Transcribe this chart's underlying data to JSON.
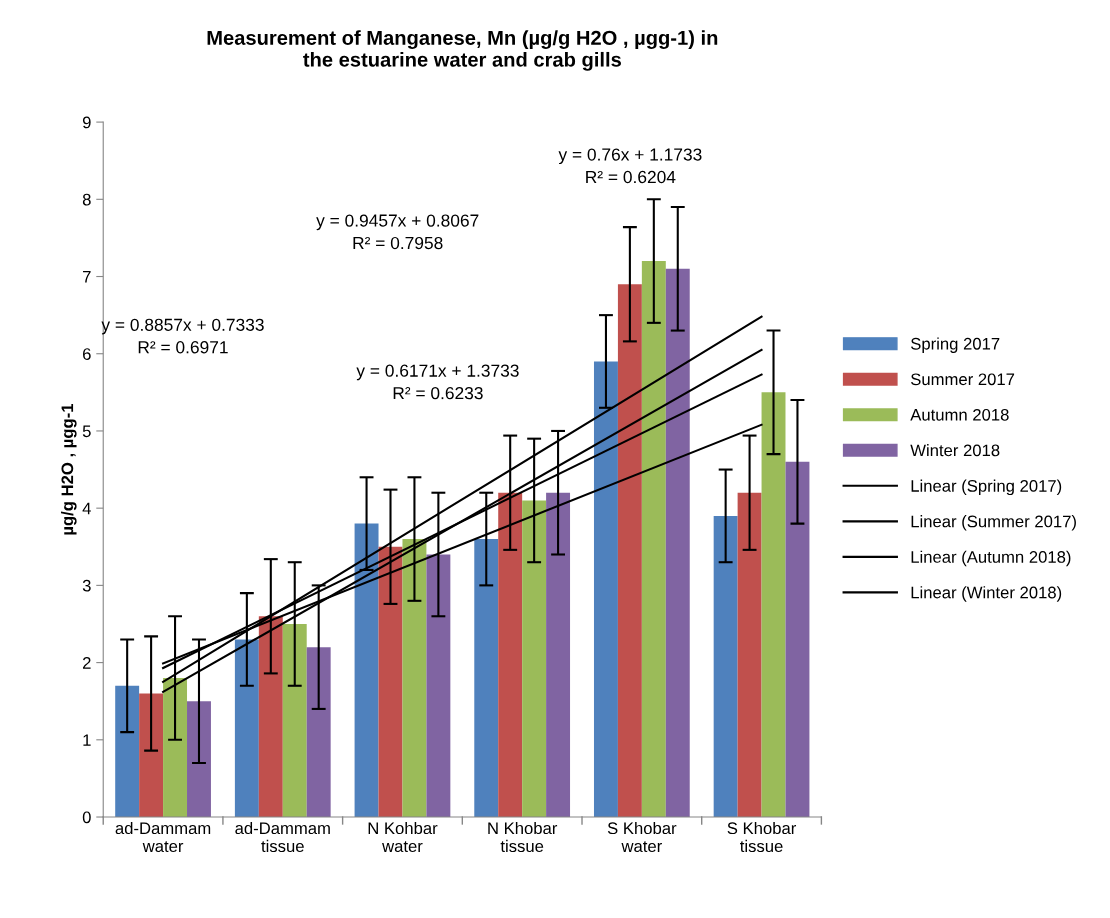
{
  "chart_data": {
    "type": "bar",
    "title": "Measurement of Manganese, Mn (µg/g H2O , µgg-1) in\nthe estuarine water and crab gills",
    "ylabel": "µg/g H2O , µgg-1",
    "categories": [
      "ad-Dammam water",
      "ad-Dammam tissue",
      "N Kohbar water",
      "N Khobar tissue",
      "S Khobar water",
      "S Khobar tissue"
    ],
    "series": [
      {
        "name": "Spring 2017",
        "color": "#4f81bd",
        "values": [
          1.7,
          2.3,
          3.8,
          3.6,
          5.9,
          3.9
        ],
        "errors": [
          0.6,
          0.6,
          0.6,
          0.6,
          0.6,
          0.6
        ]
      },
      {
        "name": "Summer 2017",
        "color": "#c0504d",
        "values": [
          1.6,
          2.6,
          3.5,
          4.2,
          6.9,
          4.2
        ],
        "errors": [
          0.74,
          0.74,
          0.74,
          0.74,
          0.74,
          0.74
        ]
      },
      {
        "name": "Autumn 2018",
        "color": "#9bbb59",
        "values": [
          1.8,
          2.5,
          3.6,
          4.1,
          7.2,
          5.5
        ],
        "errors": [
          0.8,
          0.8,
          0.8,
          0.8,
          0.8,
          0.8
        ]
      },
      {
        "name": "Winter 2018",
        "color": "#8064a2",
        "values": [
          1.5,
          2.2,
          3.4,
          4.2,
          7.1,
          4.6
        ],
        "errors": [
          0.8,
          0.8,
          0.8,
          0.8,
          0.8,
          0.8
        ]
      },
      {
        "name": "Linear (Spring 2017)",
        "type": "line",
        "color": "#000000",
        "x": [
          "ad-Dammam water",
          "S Khobar tissue"
        ],
        "values": [
          1.99,
          5.08
        ]
      },
      {
        "name": "Linear (Summer 2017)",
        "type": "line",
        "color": "#000000",
        "x": [
          "ad-Dammam water",
          "S Khobar tissue"
        ],
        "values": [
          1.93,
          5.73
        ]
      },
      {
        "name": "Linear (Autumn 2018)",
        "type": "line",
        "color": "#000000",
        "x": [
          "ad-Dammam water",
          "S Khobar tissue"
        ],
        "values": [
          1.75,
          6.48
        ]
      },
      {
        "name": "Linear (Winter 2018)",
        "type": "line",
        "color": "#000000",
        "x": [
          "ad-Dammam water",
          "S Khobar tissue"
        ],
        "values": [
          1.62,
          6.05
        ]
      }
    ],
    "annotations": [
      "y = 0.8857x + 0.7333\nR² = 0.6971",
      "y = 0.9457x + 0.8067\nR² = 0.7958",
      "y = 0.6171x + 1.3733\nR² = 0.6233",
      "y = 0.76x + 1.1733\nR² = 0.6204"
    ],
    "ylim": [
      0,
      9
    ],
    "yticks": [
      0,
      1,
      2,
      3,
      4,
      5,
      6,
      7,
      8,
      9
    ],
    "grid": false,
    "legend": "right"
  }
}
